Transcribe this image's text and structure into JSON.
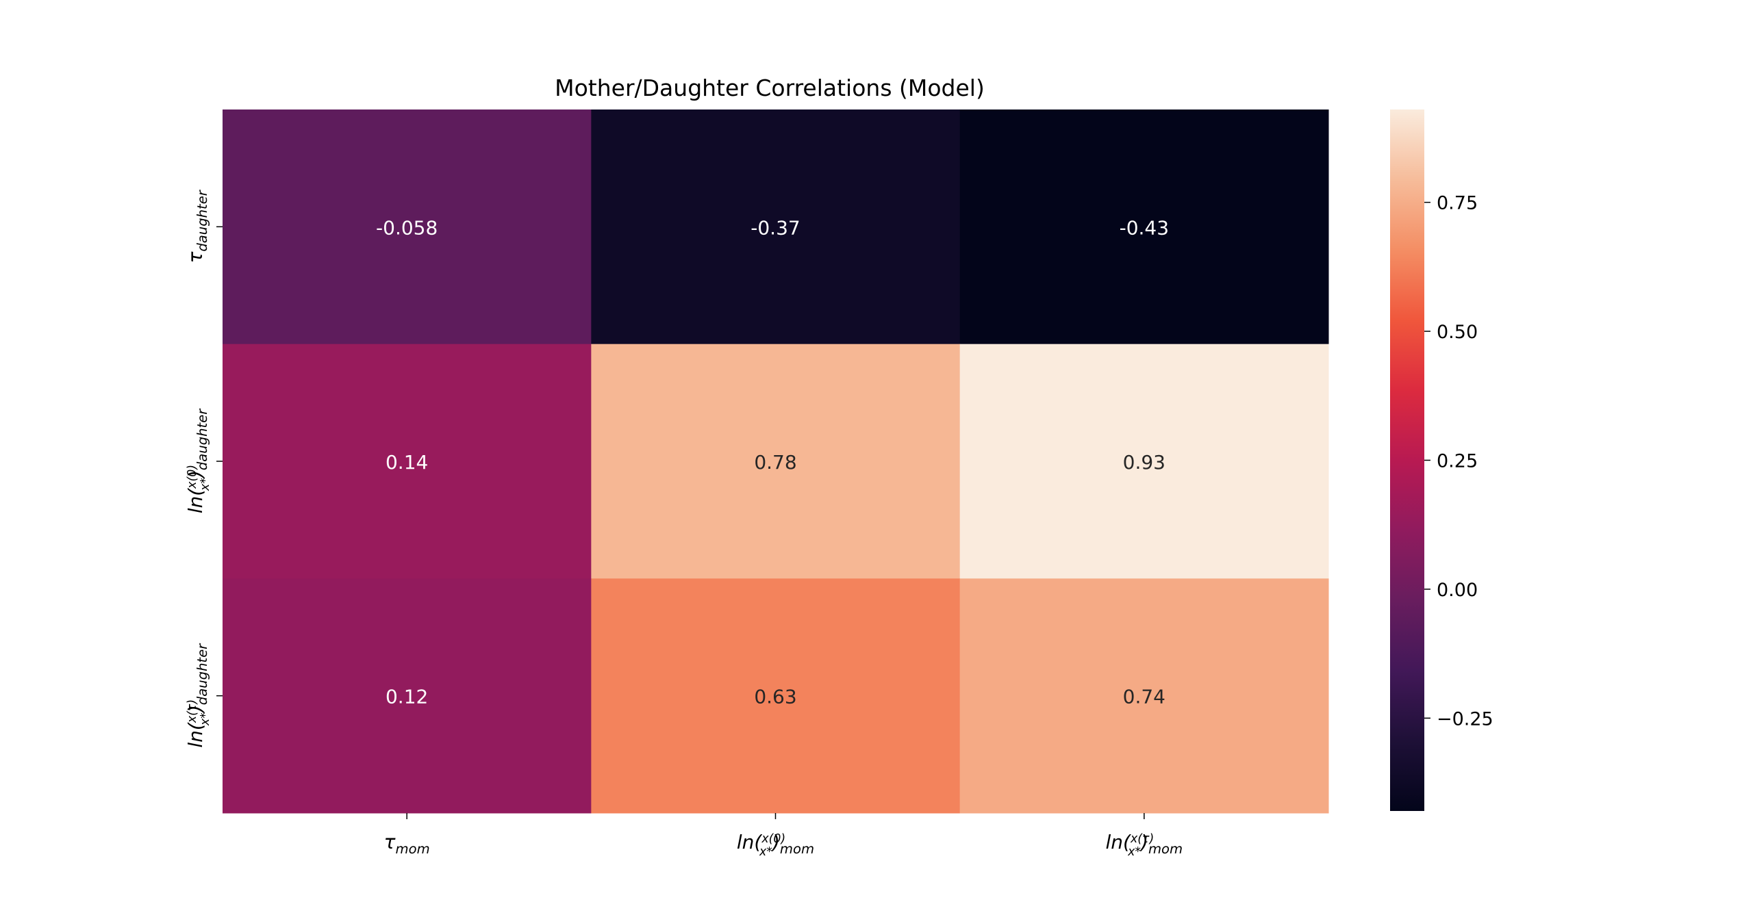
{
  "chart_data": {
    "type": "heatmap",
    "title": "Mother/Daughter Correlations (Model)",
    "x_categories": [
      {
        "base": "τ",
        "sub": "mom"
      },
      {
        "base": "ln(x(0)/x*)",
        "sub": "mom"
      },
      {
        "base": "ln(x(τ)/x*)",
        "sub": "mom"
      }
    ],
    "y_categories": [
      {
        "base": "τ",
        "sub": "daughter"
      },
      {
        "base": "ln(x(0)/x*)",
        "sub": "daughter"
      },
      {
        "base": "ln(x(τ)/x*)",
        "sub": "daughter"
      }
    ],
    "values": [
      [
        -0.058,
        -0.37,
        -0.43
      ],
      [
        0.14,
        0.78,
        0.93
      ],
      [
        0.12,
        0.63,
        0.74
      ]
    ],
    "value_labels": [
      [
        "-0.058",
        "-0.37",
        "-0.43"
      ],
      [
        "0.14",
        "0.78",
        "0.93"
      ],
      [
        "0.12",
        "0.63",
        "0.74"
      ]
    ],
    "colormap": "rocket",
    "vmin": -0.43,
    "vmax": 0.93,
    "colorbar": {
      "ticks": [
        -0.25,
        0.0,
        0.25,
        0.5,
        0.75
      ],
      "tick_labels": [
        "−0.25",
        "0.00",
        "0.25",
        "0.50",
        "0.75"
      ],
      "placement": "right"
    },
    "grid": false
  }
}
